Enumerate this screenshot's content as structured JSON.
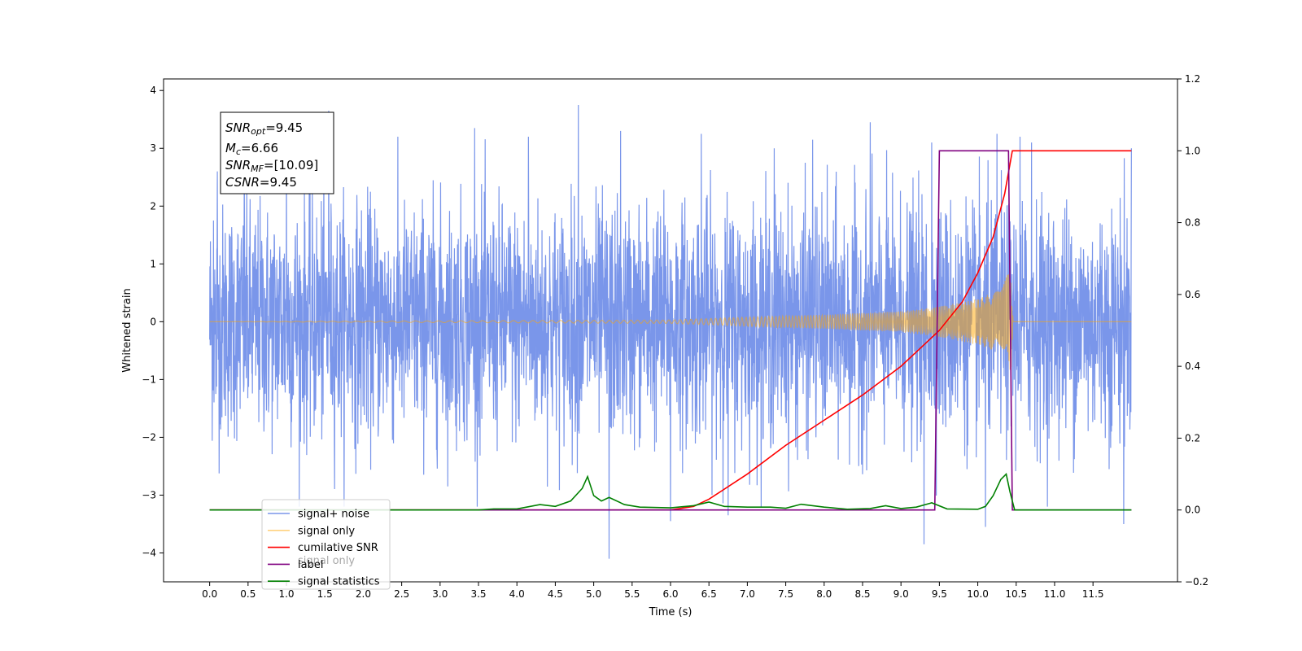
{
  "chart_data": {
    "type": "line",
    "xlabel": "Time (s)",
    "ylabel_left": "Whitened strain",
    "ylabel_right": "",
    "xlim": [
      -0.6,
      12.6
    ],
    "ylim_left": [
      -4.5,
      4.2
    ],
    "ylim_right": [
      -0.2,
      1.2
    ],
    "x_ticks": [
      0.0,
      0.5,
      1.0,
      1.5,
      2.0,
      2.5,
      3.0,
      3.5,
      4.0,
      4.5,
      5.0,
      5.5,
      6.0,
      6.5,
      7.0,
      7.5,
      8.0,
      8.5,
      9.0,
      9.5,
      10.0,
      10.5,
      11.0,
      11.5
    ],
    "x_tick_labels": [
      "0.0",
      "0.5",
      "1.0",
      "1.5",
      "2.0",
      "2.5",
      "3.0",
      "3.5",
      "4.0",
      "4.5",
      "5.0",
      "5.5",
      "6.0",
      "6.5",
      "7.0",
      "7.5",
      "8.0",
      "8.5",
      "9.0",
      "9.5",
      "10.0",
      "10.5",
      "11.0",
      "11.5"
    ],
    "y_ticks_left": [
      -4,
      -3,
      -2,
      -1,
      0,
      1,
      2,
      3,
      4
    ],
    "y_tick_labels_left": [
      "−4",
      "−3",
      "−2",
      "−1",
      "0",
      "1",
      "2",
      "3",
      "4"
    ],
    "y_ticks_right": [
      -0.2,
      0.0,
      0.2,
      0.4,
      0.6,
      0.8,
      1.0,
      1.2
    ],
    "y_tick_labels_right": [
      "−0.2",
      "0.0",
      "0.2",
      "0.4",
      "0.6",
      "0.8",
      "1.0",
      "1.2"
    ],
    "legend_position": "lower-left",
    "annotation": {
      "lines": [
        {
          "base": "SNR",
          "sub": "opt",
          "value": "=9.45"
        },
        {
          "base": "M",
          "sub": "c",
          "value": "=6.66"
        },
        {
          "base": "SNR",
          "sub": "MF",
          "value": "=[10.09]"
        },
        {
          "base": "CSNR",
          "sub": "",
          "value": "=9.45"
        }
      ]
    },
    "series": [
      {
        "name": "signal+ noise",
        "color": "#4169e1",
        "axis": "left",
        "kind": "noise",
        "x_range": [
          0.0,
          12.0
        ],
        "amplitude_sigma": 1.0,
        "peak_points": [
          [
            0.05,
            1.75
          ],
          [
            0.08,
            -1.25
          ],
          [
            0.1,
            2.6
          ],
          [
            0.45,
            3.0
          ],
          [
            1.0,
            3.1
          ],
          [
            1.55,
            3.65
          ],
          [
            3.45,
            3.35
          ],
          [
            4.15,
            3.2
          ],
          [
            4.8,
            3.75
          ],
          [
            5.2,
            -4.1
          ],
          [
            5.35,
            3.3
          ],
          [
            6.4,
            3.25
          ],
          [
            6.0,
            -3.45
          ],
          [
            6.75,
            -3.35
          ],
          [
            7.35,
            3.0
          ],
          [
            7.85,
            3.15
          ],
          [
            8.6,
            3.45
          ],
          [
            9.4,
            3.1
          ],
          [
            9.3,
            -3.85
          ],
          [
            10.1,
            -3.55
          ],
          [
            10.25,
            3.25
          ],
          [
            10.55,
            3.2
          ],
          [
            10.7,
            3.1
          ],
          [
            11.9,
            -3.5
          ],
          [
            12.0,
            3.0
          ]
        ]
      },
      {
        "name": "signal only",
        "color": "#ffa500",
        "axis": "left",
        "kind": "chirp",
        "x_range": [
          0.0,
          12.0
        ],
        "envelope": [
          [
            0.0,
            0.0
          ],
          [
            6.0,
            0.03
          ],
          [
            7.0,
            0.08
          ],
          [
            8.0,
            0.12
          ],
          [
            9.0,
            0.18
          ],
          [
            9.5,
            0.26
          ],
          [
            10.0,
            0.4
          ],
          [
            10.3,
            0.55
          ],
          [
            10.43,
            0.95
          ],
          [
            10.46,
            0.0
          ],
          [
            12.0,
            0.0
          ]
        ]
      },
      {
        "name": "cumilative SNR",
        "color": "#ff0000",
        "axis": "right",
        "x": [
          0.0,
          6.0,
          6.3,
          6.5,
          7.0,
          7.5,
          8.0,
          8.5,
          9.0,
          9.3,
          9.5,
          9.8,
          10.0,
          10.2,
          10.35,
          10.45,
          10.5,
          11.0,
          11.5,
          12.0
        ],
        "y": [
          0.0,
          0.0,
          0.01,
          0.03,
          0.1,
          0.18,
          0.25,
          0.32,
          0.4,
          0.46,
          0.5,
          0.58,
          0.66,
          0.76,
          0.88,
          1.0,
          1.0,
          1.0,
          1.0,
          1.0
        ]
      },
      {
        "name": "label",
        "color": "#800080",
        "axis": "right",
        "x": [
          0.0,
          9.44,
          9.5,
          10.4,
          10.45,
          12.0
        ],
        "y": [
          0.0,
          0.0,
          1.0,
          1.0,
          0.0,
          0.0
        ]
      },
      {
        "name": "signal statistics",
        "color": "#008000",
        "axis": "right",
        "x": [
          0.0,
          1.0,
          2.0,
          3.0,
          3.5,
          3.7,
          4.0,
          4.3,
          4.5,
          4.7,
          4.85,
          4.92,
          5.0,
          5.1,
          5.2,
          5.4,
          5.6,
          6.0,
          6.3,
          6.5,
          6.7,
          7.0,
          7.3,
          7.5,
          7.7,
          8.0,
          8.3,
          8.6,
          8.8,
          9.0,
          9.2,
          9.4,
          9.6,
          10.0,
          10.1,
          10.2,
          10.3,
          10.37,
          10.42,
          10.48,
          10.6,
          11.0,
          11.5,
          12.0
        ],
        "y": [
          0.0,
          0.0,
          0.0,
          0.0,
          0.0,
          0.003,
          0.003,
          0.015,
          0.01,
          0.025,
          0.06,
          0.093,
          0.04,
          0.025,
          0.035,
          0.015,
          0.008,
          0.006,
          0.012,
          0.022,
          0.01,
          0.008,
          0.008,
          0.005,
          0.016,
          0.008,
          0.002,
          0.004,
          0.012,
          0.004,
          0.008,
          0.02,
          0.003,
          0.002,
          0.01,
          0.04,
          0.085,
          0.1,
          0.05,
          0.0,
          0.0,
          0.0,
          0.0,
          0.0
        ]
      }
    ],
    "legend_entries": [
      "signal+ noise",
      "signal only",
      "cumilative SNR",
      "label",
      "signal statistics"
    ],
    "legend_ghost_text": "signal only"
  }
}
